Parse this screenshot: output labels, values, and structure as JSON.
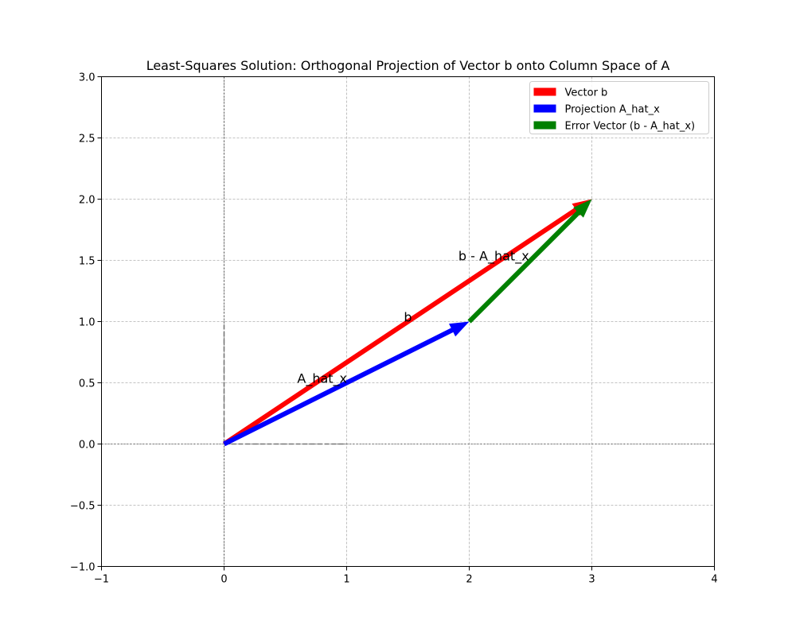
{
  "chart_data": {
    "type": "quiver",
    "title": "Least-Squares Solution: Orthogonal Projection of Vector b onto Column Space of A",
    "xlabel": "",
    "ylabel": "",
    "xlim": [
      -1,
      4
    ],
    "ylim": [
      -1,
      3
    ],
    "xticks": [
      -1,
      0,
      1,
      2,
      3,
      4
    ],
    "xtick_labels": [
      "−1",
      "0",
      "1",
      "2",
      "3",
      "4"
    ],
    "yticks": [
      -1.0,
      -0.5,
      0.0,
      0.5,
      1.0,
      1.5,
      2.0,
      2.5,
      3.0
    ],
    "ytick_labels": [
      "−1.0",
      "−0.5",
      "0.0",
      "0.5",
      "1.0",
      "1.5",
      "2.0",
      "2.5",
      "3.0"
    ],
    "grid": true,
    "legend_position": "top-right",
    "series": [
      {
        "name": "Vector b",
        "color": "#ff0000",
        "x0": 0,
        "y0": 0,
        "dx": 3,
        "dy": 2
      },
      {
        "name": "Projection A_hat_x",
        "color": "#0000ff",
        "x0": 0,
        "y0": 0,
        "dx": 2,
        "dy": 1
      },
      {
        "name": "Error Vector (b - A_hat_x)",
        "color": "#008000",
        "x0": 2,
        "y0": 1,
        "dx": 1,
        "dy": 1
      }
    ],
    "reference_lines": [
      {
        "x": [
          0,
          1
        ],
        "y": [
          0,
          0
        ],
        "style": "dashed",
        "color": "#777777"
      },
      {
        "x": [
          0,
          0
        ],
        "y": [
          0,
          1
        ],
        "style": "dashed",
        "color": "#777777"
      }
    ],
    "annotations": [
      {
        "text": "b",
        "x": 1.5,
        "y": 1.0
      },
      {
        "text": "A_hat_x",
        "x": 0.8,
        "y": 0.5
      },
      {
        "text": "b - A_hat_x",
        "x": 2.2,
        "y": 1.5
      }
    ]
  }
}
